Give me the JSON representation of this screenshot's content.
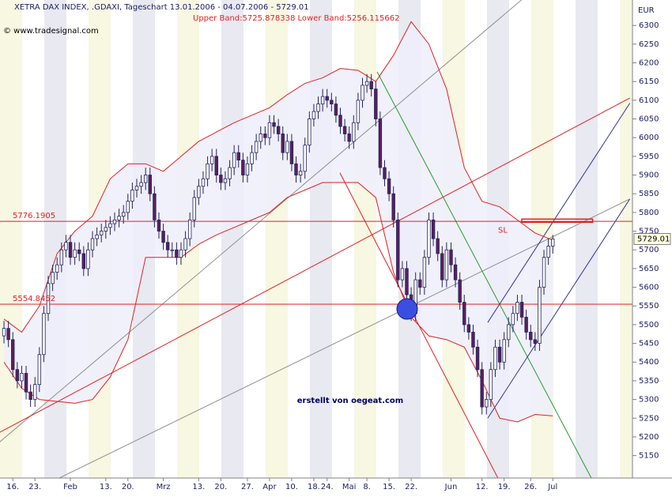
{
  "chart_data": {
    "type": "candlestick",
    "title": "XETRA DAX INDEX, .GDAXI, Tageschart 13.01.2006 - 04.07.2006 - 5729.01",
    "subtitle": "Upper Band:5725.878338 Lower Band:5256.115662",
    "copyright": "© www.tradesignal.com",
    "y_axis_label": "EUR",
    "annotation": "erstellt von oegeat.com",
    "categories": [
      null,
      null,
      "16.",
      null,
      null,
      null,
      null,
      "23.",
      null,
      null,
      null,
      null,
      null,
      null,
      null,
      "Feb",
      null,
      null,
      null,
      null,
      null,
      null,
      null,
      "13.",
      null,
      null,
      null,
      null,
      "20.",
      null,
      null,
      null,
      null,
      null,
      null,
      null,
      "Mrz",
      null,
      null,
      null,
      null,
      null,
      null,
      null,
      "13.",
      null,
      null,
      null,
      null,
      "20.",
      null,
      null,
      null,
      null,
      null,
      "27.",
      null,
      null,
      null,
      null,
      "Apr",
      null,
      null,
      null,
      null,
      "10.",
      null,
      null,
      null,
      null,
      "18.",
      null,
      null,
      "24.",
      null,
      null,
      null,
      null,
      "Mai",
      null,
      null,
      null,
      "8.",
      null,
      null,
      null,
      null,
      "15.",
      null,
      null,
      null,
      null,
      "22.",
      null,
      null,
      null,
      null,
      null,
      null,
      null,
      null,
      "Jun",
      null,
      null,
      null,
      null,
      null,
      null,
      "12.",
      null,
      null,
      null,
      null,
      "19.",
      null,
      null,
      null,
      null,
      null,
      "26.",
      null,
      null,
      null,
      null,
      "Jul"
    ],
    "open": [
      5470,
      5490,
      5460,
      5380,
      5350,
      5370,
      5320,
      5300,
      5340,
      5420,
      5530,
      5610,
      5640,
      5660,
      5700,
      5720,
      5680,
      5700,
      5690,
      5650,
      5700,
      5730,
      5740,
      5750,
      5760,
      5770,
      5780,
      5790,
      5800,
      5830,
      5860,
      5870,
      5880,
      5900,
      5850,
      5780,
      5750,
      5720,
      5700,
      5700,
      5680,
      5700,
      5730,
      5780,
      5840,
      5870,
      5890,
      5930,
      5950,
      5900,
      5880,
      5890,
      5920,
      5960,
      5940,
      5900,
      5930,
      5960,
      5990,
      6010,
      6000,
      6040,
      6030,
      6010,
      5960,
      5990,
      5930,
      5900,
      5910,
      5980,
      6050,
      6070,
      6090,
      6110,
      6100,
      6090,
      6060,
      6030,
      6010,
      5990,
      6040,
      6100,
      6140,
      6150,
      6130,
      6050,
      5920,
      5890,
      5850,
      5780,
      5620,
      5650,
      5580,
      5530,
      5620,
      5600,
      5680,
      5780,
      5730,
      5690,
      5620,
      5700,
      5660,
      5620,
      5560,
      5500,
      5480,
      5440,
      5380,
      5280,
      5300,
      5380,
      5440,
      5400,
      5460,
      5500,
      5530,
      5560,
      5520,
      5480,
      5460,
      5450,
      5600,
      5680,
      5710
    ],
    "high": [
      5510,
      5510,
      5480,
      5400,
      5390,
      5390,
      5340,
      5360,
      5440,
      5550,
      5630,
      5660,
      5680,
      5720,
      5740,
      5740,
      5720,
      5720,
      5710,
      5720,
      5750,
      5760,
      5770,
      5780,
      5790,
      5800,
      5810,
      5820,
      5850,
      5880,
      5890,
      5900,
      5920,
      5920,
      5870,
      5800,
      5770,
      5740,
      5720,
      5720,
      5720,
      5750,
      5800,
      5860,
      5890,
      5910,
      5950,
      5970,
      5970,
      5920,
      5910,
      5940,
      5980,
      5980,
      5960,
      5950,
      5980,
      6010,
      6030,
      6030,
      6060,
      6060,
      6050,
      6030,
      6010,
      6010,
      5950,
      5930,
      6000,
      6070,
      6090,
      6110,
      6130,
      6130,
      6120,
      6110,
      6080,
      6050,
      6030,
      6060,
      6120,
      6160,
      6170,
      6170,
      6150,
      6070,
      5940,
      5910,
      5870,
      5800,
      5670,
      5670,
      5600,
      5640,
      5640,
      5700,
      5800,
      5800,
      5750,
      5710,
      5720,
      5720,
      5680,
      5640,
      5580,
      5520,
      5500,
      5460,
      5400,
      5320,
      5400,
      5460,
      5460,
      5480,
      5520,
      5550,
      5580,
      5580,
      5540,
      5500,
      5480,
      5620,
      5700,
      5730,
      5740
    ],
    "low": [
      5450,
      5440,
      5360,
      5330,
      5330,
      5300,
      5280,
      5280,
      5320,
      5400,
      5510,
      5590,
      5620,
      5640,
      5680,
      5660,
      5660,
      5670,
      5630,
      5630,
      5680,
      5710,
      5720,
      5730,
      5740,
      5750,
      5760,
      5770,
      5780,
      5810,
      5840,
      5850,
      5860,
      5830,
      5760,
      5730,
      5700,
      5680,
      5680,
      5660,
      5660,
      5680,
      5710,
      5760,
      5820,
      5850,
      5870,
      5910,
      5880,
      5860,
      5860,
      5870,
      5900,
      5920,
      5880,
      5880,
      5910,
      5940,
      5970,
      5980,
      5980,
      6010,
      5990,
      5940,
      5940,
      5910,
      5880,
      5880,
      5890,
      5960,
      6030,
      6050,
      6070,
      6080,
      6070,
      6040,
      6010,
      5990,
      5970,
      5970,
      6020,
      6080,
      6120,
      6110,
      6030,
      5900,
      5870,
      5830,
      5760,
      5600,
      5600,
      5560,
      5510,
      5510,
      5580,
      5580,
      5660,
      5710,
      5670,
      5600,
      5600,
      5640,
      5600,
      5540,
      5480,
      5460,
      5420,
      5360,
      5260,
      5260,
      5280,
      5360,
      5380,
      5380,
      5440,
      5480,
      5510,
      5500,
      5460,
      5440,
      5430,
      5430,
      5580,
      5660,
      5690
    ],
    "close": [
      5490,
      5460,
      5380,
      5350,
      5370,
      5320,
      5300,
      5340,
      5420,
      5530,
      5610,
      5640,
      5660,
      5700,
      5720,
      5680,
      5700,
      5690,
      5650,
      5700,
      5730,
      5740,
      5750,
      5760,
      5770,
      5780,
      5790,
      5800,
      5830,
      5860,
      5870,
      5880,
      5900,
      5850,
      5780,
      5750,
      5720,
      5700,
      5700,
      5680,
      5700,
      5730,
      5780,
      5840,
      5870,
      5890,
      5930,
      5950,
      5900,
      5880,
      5890,
      5920,
      5960,
      5940,
      5900,
      5930,
      5960,
      5990,
      6010,
      6000,
      6040,
      6030,
      6010,
      5960,
      5990,
      5930,
      5900,
      5910,
      5980,
      6050,
      6070,
      6090,
      6110,
      6100,
      6090,
      6060,
      6030,
      6010,
      5990,
      6040,
      6100,
      6140,
      6150,
      6130,
      6050,
      5920,
      5890,
      5850,
      5780,
      5620,
      5650,
      5580,
      5530,
      5620,
      5600,
      5680,
      5780,
      5730,
      5690,
      5620,
      5700,
      5660,
      5620,
      5560,
      5500,
      5480,
      5440,
      5380,
      5280,
      5300,
      5380,
      5440,
      5400,
      5460,
      5500,
      5530,
      5560,
      5520,
      5480,
      5460,
      5450,
      5600,
      5680,
      5710,
      5729.01
    ],
    "up_color": "#ffffff",
    "down_color": "#5a1f5e",
    "candle_edge": "#23235e",
    "bands": [
      {
        "color": "#e02020",
        "x": [
          0,
          4,
          8,
          12,
          16,
          20,
          24,
          28,
          32,
          36,
          40,
          44,
          48,
          52,
          56,
          60,
          64,
          68,
          72,
          76,
          80,
          84,
          88,
          92,
          96,
          100,
          104,
          108,
          112,
          116,
          120,
          124
        ],
        "values": [
          5515,
          5480,
          5550,
          5690,
          5750,
          5790,
          5890,
          5930,
          5930,
          5910,
          5950,
          5990,
          6015,
          6040,
          6060,
          6080,
          6115,
          6145,
          6160,
          6185,
          6180,
          6150,
          6220,
          6310,
          6250,
          6130,
          5920,
          5830,
          5815,
          5780,
          5745,
          5726
        ]
      },
      {
        "color": "#e02020",
        "x": [
          0,
          4,
          8,
          12,
          16,
          20,
          24,
          28,
          32,
          36,
          40,
          44,
          48,
          52,
          56,
          60,
          64,
          68,
          72,
          76,
          80,
          84,
          88,
          92,
          96,
          100,
          104,
          108,
          112,
          116,
          120,
          124
        ],
        "values": [
          5400,
          5330,
          5300,
          5295,
          5290,
          5300,
          5360,
          5460,
          5680,
          5680,
          5680,
          5715,
          5740,
          5760,
          5780,
          5800,
          5840,
          5860,
          5880,
          5880,
          5880,
          5840,
          5640,
          5520,
          5470,
          5460,
          5440,
          5350,
          5250,
          5240,
          5260,
          5256
        ]
      }
    ],
    "band_fill": "#eeeefb",
    "hlines": [
      {
        "value": 5776.1905,
        "color": "#e02020"
      },
      {
        "value": 5554.8452,
        "color": "#e02020"
      }
    ],
    "trendlines": [
      {
        "color": "#909090",
        "x": [
          -1,
          118
        ],
        "values": [
          5186,
          6379
        ]
      },
      {
        "color": "#909090",
        "x": [
          12.5,
          141.4
        ],
        "values": [
          5090,
          5836
        ]
      },
      {
        "color": "#e02020",
        "x": [
          -1,
          141.4
        ],
        "values": [
          5212,
          6106
        ]
      },
      {
        "color": "#e02020",
        "x": [
          75.9,
          111.6
        ],
        "values": [
          5906,
          5090
        ]
      },
      {
        "color": "#2a9a2a",
        "x": [
          84.3,
          132.7
        ],
        "values": [
          6176,
          5090
        ]
      },
      {
        "color": "#3030a0",
        "x": [
          109.3,
          141.4
        ],
        "values": [
          5506,
          6092
        ]
      },
      {
        "color": "#3030a0",
        "x": [
          109.3,
          141.4
        ],
        "values": [
          5250,
          5836
        ]
      }
    ],
    "stop_loss": {
      "label": "SL",
      "value": 5778,
      "x": [
        117,
        133
      ],
      "color": "#e02020"
    },
    "xlim": [
      -0.9,
      142
    ],
    "ylim": [
      5090,
      6368
    ],
    "yticks": [
      5150,
      5200,
      5250,
      5300,
      5350,
      5400,
      5450,
      5500,
      5550,
      5600,
      5650,
      5700,
      5750,
      5800,
      5850,
      5900,
      5950,
      6000,
      6050,
      6100,
      6150,
      6200,
      6250,
      6300
    ]
  }
}
